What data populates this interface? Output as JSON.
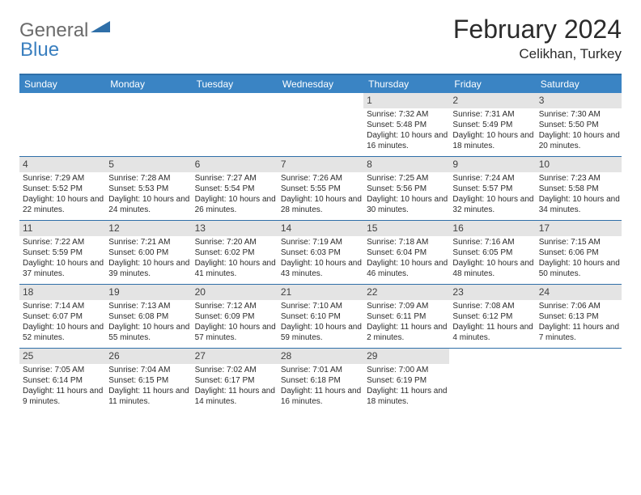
{
  "brand": {
    "general": "General",
    "blue": "Blue"
  },
  "title": "February 2024",
  "location": "Celikhan, Turkey",
  "colors": {
    "header_bg": "#3a84c4",
    "border": "#2f6fa8",
    "daynum_bg": "#e4e4e4",
    "text": "#2b2b2b",
    "logo_gray": "#6b6b6b",
    "logo_blue": "#3a7fbf"
  },
  "weekdays": [
    "Sunday",
    "Monday",
    "Tuesday",
    "Wednesday",
    "Thursday",
    "Friday",
    "Saturday"
  ],
  "weeks": [
    [
      {
        "n": "",
        "empty": true
      },
      {
        "n": "",
        "empty": true
      },
      {
        "n": "",
        "empty": true
      },
      {
        "n": "",
        "empty": true
      },
      {
        "n": "1",
        "sunrise": "Sunrise: 7:32 AM",
        "sunset": "Sunset: 5:48 PM",
        "daylight": "Daylight: 10 hours and 16 minutes."
      },
      {
        "n": "2",
        "sunrise": "Sunrise: 7:31 AM",
        "sunset": "Sunset: 5:49 PM",
        "daylight": "Daylight: 10 hours and 18 minutes."
      },
      {
        "n": "3",
        "sunrise": "Sunrise: 7:30 AM",
        "sunset": "Sunset: 5:50 PM",
        "daylight": "Daylight: 10 hours and 20 minutes."
      }
    ],
    [
      {
        "n": "4",
        "sunrise": "Sunrise: 7:29 AM",
        "sunset": "Sunset: 5:52 PM",
        "daylight": "Daylight: 10 hours and 22 minutes."
      },
      {
        "n": "5",
        "sunrise": "Sunrise: 7:28 AM",
        "sunset": "Sunset: 5:53 PM",
        "daylight": "Daylight: 10 hours and 24 minutes."
      },
      {
        "n": "6",
        "sunrise": "Sunrise: 7:27 AM",
        "sunset": "Sunset: 5:54 PM",
        "daylight": "Daylight: 10 hours and 26 minutes."
      },
      {
        "n": "7",
        "sunrise": "Sunrise: 7:26 AM",
        "sunset": "Sunset: 5:55 PM",
        "daylight": "Daylight: 10 hours and 28 minutes."
      },
      {
        "n": "8",
        "sunrise": "Sunrise: 7:25 AM",
        "sunset": "Sunset: 5:56 PM",
        "daylight": "Daylight: 10 hours and 30 minutes."
      },
      {
        "n": "9",
        "sunrise": "Sunrise: 7:24 AM",
        "sunset": "Sunset: 5:57 PM",
        "daylight": "Daylight: 10 hours and 32 minutes."
      },
      {
        "n": "10",
        "sunrise": "Sunrise: 7:23 AM",
        "sunset": "Sunset: 5:58 PM",
        "daylight": "Daylight: 10 hours and 34 minutes."
      }
    ],
    [
      {
        "n": "11",
        "sunrise": "Sunrise: 7:22 AM",
        "sunset": "Sunset: 5:59 PM",
        "daylight": "Daylight: 10 hours and 37 minutes."
      },
      {
        "n": "12",
        "sunrise": "Sunrise: 7:21 AM",
        "sunset": "Sunset: 6:00 PM",
        "daylight": "Daylight: 10 hours and 39 minutes."
      },
      {
        "n": "13",
        "sunrise": "Sunrise: 7:20 AM",
        "sunset": "Sunset: 6:02 PM",
        "daylight": "Daylight: 10 hours and 41 minutes."
      },
      {
        "n": "14",
        "sunrise": "Sunrise: 7:19 AM",
        "sunset": "Sunset: 6:03 PM",
        "daylight": "Daylight: 10 hours and 43 minutes."
      },
      {
        "n": "15",
        "sunrise": "Sunrise: 7:18 AM",
        "sunset": "Sunset: 6:04 PM",
        "daylight": "Daylight: 10 hours and 46 minutes."
      },
      {
        "n": "16",
        "sunrise": "Sunrise: 7:16 AM",
        "sunset": "Sunset: 6:05 PM",
        "daylight": "Daylight: 10 hours and 48 minutes."
      },
      {
        "n": "17",
        "sunrise": "Sunrise: 7:15 AM",
        "sunset": "Sunset: 6:06 PM",
        "daylight": "Daylight: 10 hours and 50 minutes."
      }
    ],
    [
      {
        "n": "18",
        "sunrise": "Sunrise: 7:14 AM",
        "sunset": "Sunset: 6:07 PM",
        "daylight": "Daylight: 10 hours and 52 minutes."
      },
      {
        "n": "19",
        "sunrise": "Sunrise: 7:13 AM",
        "sunset": "Sunset: 6:08 PM",
        "daylight": "Daylight: 10 hours and 55 minutes."
      },
      {
        "n": "20",
        "sunrise": "Sunrise: 7:12 AM",
        "sunset": "Sunset: 6:09 PM",
        "daylight": "Daylight: 10 hours and 57 minutes."
      },
      {
        "n": "21",
        "sunrise": "Sunrise: 7:10 AM",
        "sunset": "Sunset: 6:10 PM",
        "daylight": "Daylight: 10 hours and 59 minutes."
      },
      {
        "n": "22",
        "sunrise": "Sunrise: 7:09 AM",
        "sunset": "Sunset: 6:11 PM",
        "daylight": "Daylight: 11 hours and 2 minutes."
      },
      {
        "n": "23",
        "sunrise": "Sunrise: 7:08 AM",
        "sunset": "Sunset: 6:12 PM",
        "daylight": "Daylight: 11 hours and 4 minutes."
      },
      {
        "n": "24",
        "sunrise": "Sunrise: 7:06 AM",
        "sunset": "Sunset: 6:13 PM",
        "daylight": "Daylight: 11 hours and 7 minutes."
      }
    ],
    [
      {
        "n": "25",
        "sunrise": "Sunrise: 7:05 AM",
        "sunset": "Sunset: 6:14 PM",
        "daylight": "Daylight: 11 hours and 9 minutes."
      },
      {
        "n": "26",
        "sunrise": "Sunrise: 7:04 AM",
        "sunset": "Sunset: 6:15 PM",
        "daylight": "Daylight: 11 hours and 11 minutes."
      },
      {
        "n": "27",
        "sunrise": "Sunrise: 7:02 AM",
        "sunset": "Sunset: 6:17 PM",
        "daylight": "Daylight: 11 hours and 14 minutes."
      },
      {
        "n": "28",
        "sunrise": "Sunrise: 7:01 AM",
        "sunset": "Sunset: 6:18 PM",
        "daylight": "Daylight: 11 hours and 16 minutes."
      },
      {
        "n": "29",
        "sunrise": "Sunrise: 7:00 AM",
        "sunset": "Sunset: 6:19 PM",
        "daylight": "Daylight: 11 hours and 18 minutes."
      },
      {
        "n": "",
        "empty": true
      },
      {
        "n": "",
        "empty": true
      }
    ]
  ]
}
